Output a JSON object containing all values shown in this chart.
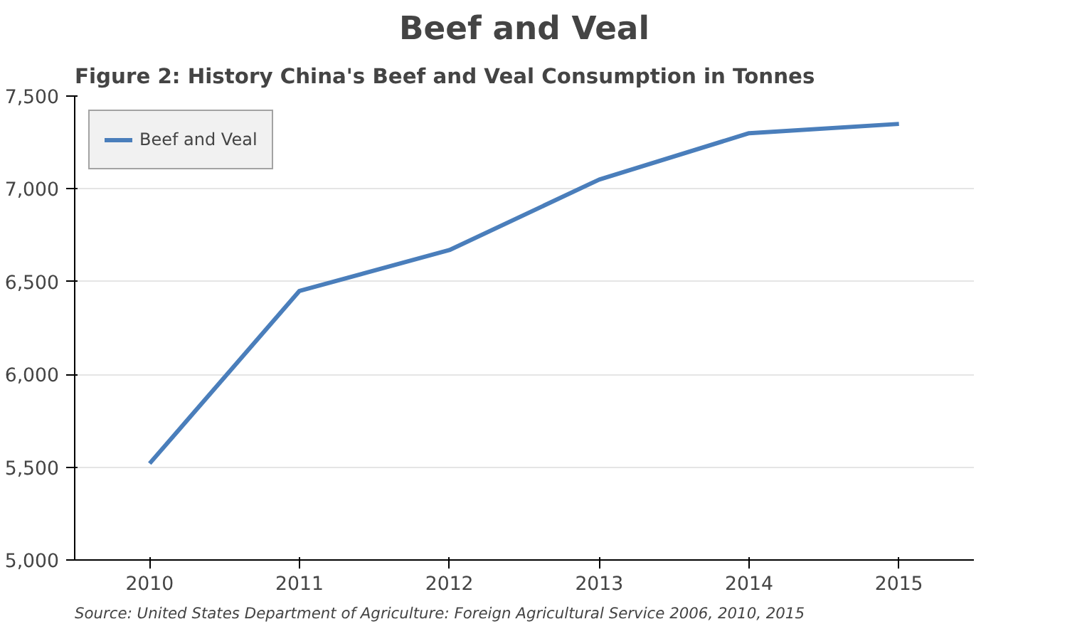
{
  "chart_data": {
    "type": "line",
    "title": "Beef and Veal",
    "categories": [
      "2010",
      "2011",
      "2012",
      "2013",
      "2014",
      "2015"
    ],
    "series": [
      {
        "name": "Beef and Veal",
        "color": "#4a7ebb",
        "values": [
          5520,
          6450,
          6670,
          7050,
          7300,
          7350
        ]
      }
    ],
    "ylim": [
      5000,
      7500
    ],
    "yticks": [
      {
        "value": 5000,
        "label": "5,000"
      },
      {
        "value": 5500,
        "label": "5,500"
      },
      {
        "value": 6000,
        "label": "6,000"
      },
      {
        "value": 6500,
        "label": "6,500"
      },
      {
        "value": 7000,
        "label": "7,000"
      },
      {
        "value": 7500,
        "label": "7,500"
      }
    ],
    "grid": "y",
    "legend": "top left",
    "marker": "none",
    "line_style": "solid",
    "annotations": [
      "Figure 2: History China's Beef and Veal Consumption in Tonnes",
      "Source: United States Department of Agriculture: Foreign Agricultural Service 2006, 2010, 2015"
    ]
  }
}
